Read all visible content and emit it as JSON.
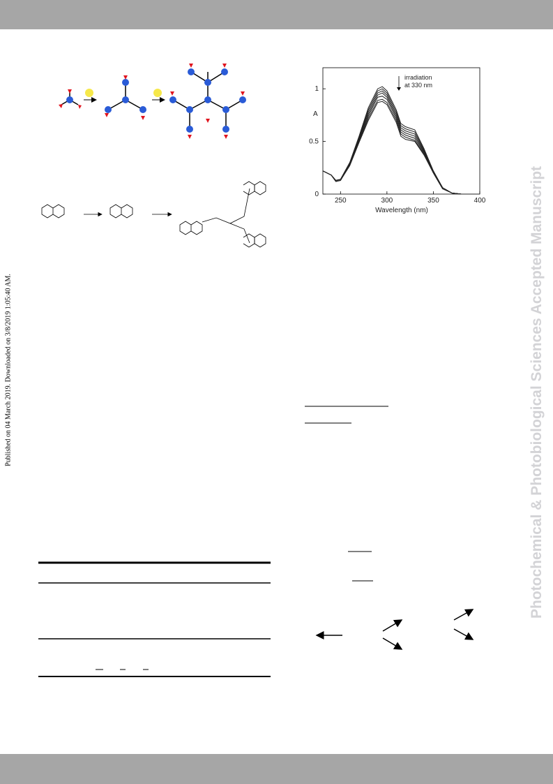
{
  "side_note": "Published on 04 March 2019. Downloaded on 3/8/2019 1:05:40 AM.",
  "watermark": "Photochemical & Photobiological Sciences Accepted Manuscript",
  "figure": {
    "chart_data": {
      "type": "line",
      "y_label": "A",
      "x_label": "Wavelength (nm)",
      "annotation": [
        "irradiation",
        "at 330 nm"
      ],
      "xlim": [
        231,
        400
      ],
      "ylim": [
        0,
        1.2
      ],
      "xticks": [
        250,
        300,
        350,
        400
      ],
      "yticks": [
        0,
        0.5,
        1
      ],
      "x": [
        231,
        240,
        245,
        250,
        260,
        270,
        280,
        290,
        295,
        300,
        310,
        315,
        320,
        330,
        340,
        350,
        360,
        370,
        380,
        390,
        400
      ],
      "series": [
        {
          "color": "#222222",
          "values": [
            0.22,
            0.18,
            0.13,
            0.14,
            0.3,
            0.55,
            0.82,
            1.0,
            1.02,
            0.98,
            0.8,
            0.67,
            0.64,
            0.61,
            0.43,
            0.22,
            0.06,
            0.01,
            0,
            0,
            0
          ]
        },
        {
          "color": "#222222",
          "values": [
            0.22,
            0.18,
            0.13,
            0.14,
            0.3,
            0.54,
            0.8,
            0.98,
            1.0,
            0.96,
            0.78,
            0.65,
            0.62,
            0.59,
            0.42,
            0.22,
            0.06,
            0.01,
            0,
            0,
            0
          ]
        },
        {
          "color": "#222222",
          "values": [
            0.22,
            0.18,
            0.13,
            0.14,
            0.29,
            0.53,
            0.78,
            0.96,
            0.98,
            0.94,
            0.76,
            0.63,
            0.6,
            0.57,
            0.41,
            0.21,
            0.06,
            0.01,
            0,
            0,
            0
          ]
        },
        {
          "color": "#222222",
          "values": [
            0.22,
            0.18,
            0.13,
            0.14,
            0.29,
            0.52,
            0.76,
            0.94,
            0.96,
            0.92,
            0.74,
            0.61,
            0.58,
            0.55,
            0.4,
            0.21,
            0.06,
            0.01,
            0,
            0,
            0
          ]
        },
        {
          "color": "#222222",
          "values": [
            0.22,
            0.18,
            0.12,
            0.13,
            0.28,
            0.51,
            0.74,
            0.92,
            0.93,
            0.9,
            0.72,
            0.59,
            0.56,
            0.53,
            0.39,
            0.21,
            0.06,
            0.01,
            0,
            0,
            0
          ]
        },
        {
          "color": "#222222",
          "values": [
            0.22,
            0.18,
            0.12,
            0.13,
            0.28,
            0.5,
            0.72,
            0.89,
            0.9,
            0.87,
            0.7,
            0.57,
            0.54,
            0.51,
            0.38,
            0.2,
            0.05,
            0.01,
            0,
            0,
            0
          ]
        },
        {
          "color": "#222222",
          "values": [
            0.22,
            0.18,
            0.12,
            0.13,
            0.27,
            0.49,
            0.7,
            0.87,
            0.88,
            0.85,
            0.68,
            0.55,
            0.52,
            0.5,
            0.37,
            0.2,
            0.05,
            0.01,
            0,
            0,
            0
          ]
        }
      ]
    }
  }
}
